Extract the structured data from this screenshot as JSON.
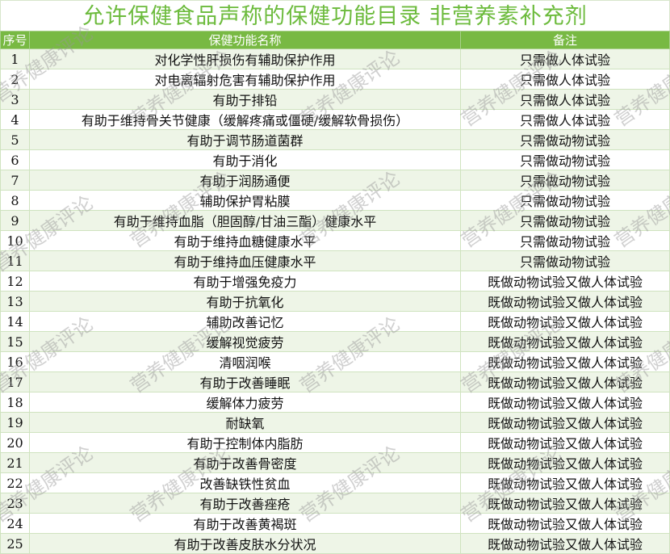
{
  "title": "允许保健食品声称的保健功能目录 非营养素补充剂",
  "headers": [
    "序号",
    "保健功能名称",
    "备注"
  ],
  "watermark": "营养健康评论",
  "rows": [
    {
      "no": "1",
      "name": "对化学性肝损伤有辅助保护作用",
      "note": "只需做人体试验"
    },
    {
      "no": "2",
      "name": "对电离辐射危害有辅助保护作用",
      "note": "只需做人体试验"
    },
    {
      "no": "3",
      "name": "有助于排铅",
      "note": "只需做人体试验"
    },
    {
      "no": "4",
      "name": "有助于维持骨关节健康（缓解疼痛或僵硬/缓解软骨损伤）",
      "note": "只需做人体试验"
    },
    {
      "no": "5",
      "name": "有助于调节肠道菌群",
      "note": "只需做动物试验"
    },
    {
      "no": "6",
      "name": "有助于消化",
      "note": "只需做动物试验"
    },
    {
      "no": "7",
      "name": "有助于润肠通便",
      "note": "只需做动物试验"
    },
    {
      "no": "8",
      "name": "辅助保护胃粘膜",
      "note": "只需做动物试验"
    },
    {
      "no": "9",
      "name": "有助于维持血脂（胆固醇/甘油三酯）健康水平",
      "note": "只需做动物试验"
    },
    {
      "no": "10",
      "name": "有助于维持血糖健康水平",
      "note": "只需做动物试验"
    },
    {
      "no": "11",
      "name": "有助于维持血压健康水平",
      "note": "只需做动物试验"
    },
    {
      "no": "12",
      "name": "有助于增强免疫力",
      "note": "既做动物试验又做人体试验"
    },
    {
      "no": "13",
      "name": "有助于抗氧化",
      "note": "既做动物试验又做人体试验"
    },
    {
      "no": "14",
      "name": "辅助改善记忆",
      "note": "既做动物试验又做人体试验"
    },
    {
      "no": "15",
      "name": "缓解视觉疲劳",
      "note": "既做动物试验又做人体试验"
    },
    {
      "no": "16",
      "name": "清咽润喉",
      "note": "既做动物试验又做人体试验"
    },
    {
      "no": "17",
      "name": "有助于改善睡眠",
      "note": "既做动物试验又做人体试验"
    },
    {
      "no": "18",
      "name": "缓解体力疲劳",
      "note": "既做动物试验又做人体试验"
    },
    {
      "no": "19",
      "name": "耐缺氧",
      "note": "既做动物试验又做人体试验"
    },
    {
      "no": "20",
      "name": "有助于控制体内脂肪",
      "note": "既做动物试验又做人体试验"
    },
    {
      "no": "21",
      "name": "有助于改善骨密度",
      "note": "既做动物试验又做人体试验"
    },
    {
      "no": "22",
      "name": "改善缺铁性贫血",
      "note": "既做动物试验又做人体试验"
    },
    {
      "no": "23",
      "name": "有助于改善痤疮",
      "note": "既做动物试验又做人体试验"
    },
    {
      "no": "24",
      "name": "有助于改善黄褐斑",
      "note": "既做动物试验又做人体试验"
    },
    {
      "no": "25",
      "name": "有助于改善皮肤水分状况",
      "note": "既做动物试验又做人体试验"
    }
  ]
}
